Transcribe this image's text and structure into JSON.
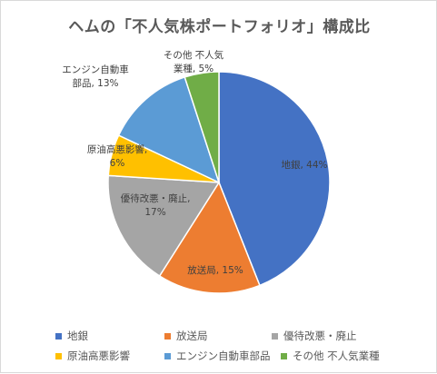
{
  "chart_data": {
    "type": "pie",
    "title": "ヘムの「不人気株ポートフォリオ」構成比",
    "categories": [
      "地銀",
      "放送局",
      "優待改悪・廃止",
      "原油高悪影響",
      "エンジン自動車部品",
      "その他 不人気業種"
    ],
    "values": [
      44,
      15,
      17,
      6,
      13,
      5
    ],
    "data_labels": [
      [
        "地銀, 44%"
      ],
      [
        "放送局, 15%"
      ],
      [
        "優待改悪・廃止,",
        "17%"
      ],
      [
        "原油高悪影響,",
        "6%"
      ],
      [
        "エンジン自動車",
        "部品, 13%"
      ],
      [
        "その他 不人気",
        "業種, 5%"
      ]
    ],
    "colors": [
      "#4472c4",
      "#ed7d31",
      "#a5a5a5",
      "#ffc000",
      "#5b9bd5",
      "#70ad47"
    ],
    "legend_position": "bottom"
  }
}
